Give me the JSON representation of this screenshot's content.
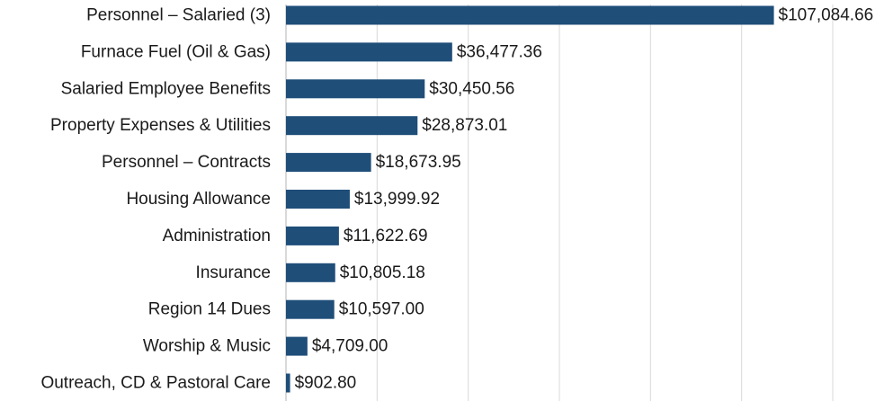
{
  "chart_data": {
    "type": "bar",
    "orientation": "horizontal",
    "title": "",
    "xlabel": "",
    "ylabel": "",
    "grid": true,
    "legend": "none",
    "bar_color": "#1f4e79",
    "xlim": [
      0,
      120000
    ],
    "categories": [
      "Personnel – Salaried (3)",
      "Furnace Fuel (Oil & Gas)",
      "Salaried Employee Benefits",
      "Property Expenses & Utilities",
      "Personnel – Contracts",
      "Housing Allowance",
      "Administration",
      "Insurance",
      "Region 14 Dues",
      "Worship & Music",
      "Outreach, CD & Pastoral Care"
    ],
    "values": [
      107084.66,
      36477.36,
      30450.56,
      28873.01,
      18673.95,
      13999.92,
      11622.69,
      10805.18,
      10597.0,
      4709.0,
      902.8
    ],
    "data_labels": [
      "$107,084.66",
      "$36,477.36",
      "$30,450.56",
      "$28,873.01",
      "$18,673.95",
      "$13,999.92",
      "$11,622.69",
      "$10,805.18",
      "$10,597.00",
      "$4,709.00",
      "$902.80"
    ]
  }
}
